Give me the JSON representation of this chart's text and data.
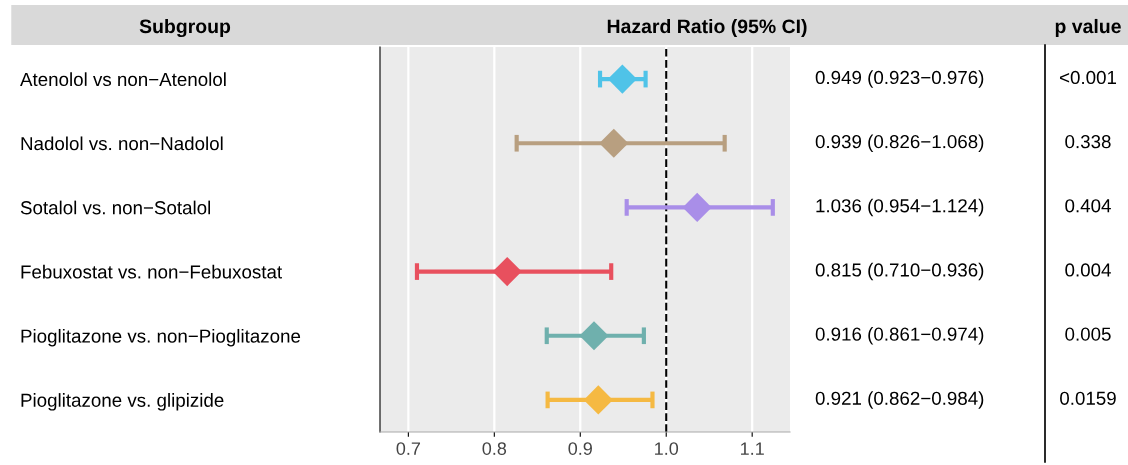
{
  "chart_data": {
    "type": "scatter",
    "orientation": "horizontal",
    "title": "Hazard Ratio (95% CI)",
    "categories": [
      "Atenolol vs non−Atenolol",
      "Nadolol vs. non−Nadolol",
      "Sotalol vs. non−Sotalol",
      "Febuxostat vs. non−Febuxostat",
      "Pioglitazone vs. non−Pioglitazone",
      "Pioglitazone vs. glipizide"
    ],
    "values": [
      0.949,
      0.939,
      1.036,
      0.815,
      0.916,
      0.921
    ],
    "errors": [
      [
        0.923,
        0.976
      ],
      [
        0.826,
        1.068
      ],
      [
        0.954,
        1.124
      ],
      [
        0.71,
        0.936
      ],
      [
        0.861,
        0.974
      ],
      [
        0.862,
        0.984
      ]
    ],
    "colors": [
      "#4fc3e8",
      "#b89f80",
      "#a98ee8",
      "#e8505e",
      "#6fb0ad",
      "#f5b942"
    ],
    "value_labels": [
      "0.949 (0.923−0.976)",
      "0.939 (0.826−1.068)",
      "1.036 (0.954−1.124)",
      "0.815 (0.710−0.936)",
      "0.916 (0.861−0.974)",
      "0.921 (0.862−0.984)"
    ],
    "marker": "diamond",
    "xlim": [
      0.667,
      1.144
    ],
    "xticks": [
      0.7,
      0.8,
      0.9,
      {
        "value": 1.0,
        "label": "1.0"
      },
      1.1
    ],
    "ref_lines": [
      {
        "axis": "x",
        "value": 1.0,
        "line_style": "dashed",
        "color": "#000000"
      }
    ],
    "grid": "x",
    "annotations": [
      "Subgroup",
      "p value",
      "<0.001",
      "0.338",
      "0.404",
      "0.004",
      "0.005",
      "0.0159"
    ]
  }
}
